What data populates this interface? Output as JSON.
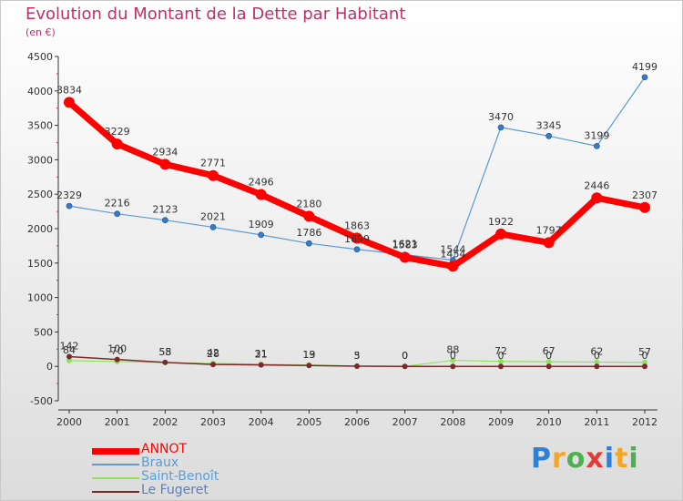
{
  "title": "Evolution du Montant de la Dette par Habitant",
  "subtitle": "(en €)",
  "brand": {
    "text": "Proxiti",
    "letters": [
      {
        "ch": "P",
        "color": "#2e7fd6"
      },
      {
        "ch": "r",
        "color": "#f5a623"
      },
      {
        "ch": "o",
        "color": "#4caf50"
      },
      {
        "ch": "x",
        "color": "#e53935"
      },
      {
        "ch": "i",
        "color": "#2e7fd6"
      },
      {
        "ch": "t",
        "color": "#f5a623"
      },
      {
        "ch": "i",
        "color": "#4caf50"
      }
    ]
  },
  "chart_data": {
    "type": "line",
    "title": "Evolution du Montant de la Dette par Habitant",
    "subtitle": "(en €)",
    "x": [
      2000,
      2001,
      2002,
      2003,
      2004,
      2005,
      2006,
      2007,
      2008,
      2009,
      2010,
      2011,
      2012
    ],
    "ylim": [
      -500,
      4500
    ],
    "yticks": [
      -500,
      0,
      500,
      1000,
      1500,
      2000,
      2500,
      3000,
      3500,
      4000,
      4500
    ],
    "grid": false,
    "legend_position": "bottom-left",
    "series": [
      {
        "name": "ANNOT",
        "color": "#ff0000",
        "values": [
          3834,
          3229,
          2934,
          2771,
          2496,
          2180,
          1863,
          1583,
          1454,
          1922,
          1797,
          2446,
          2307
        ]
      },
      {
        "name": "Braux",
        "color": "#5b9bd5",
        "values": [
          2329,
          2216,
          2123,
          2021,
          1909,
          1786,
          1699,
          1621,
          1544,
          3470,
          3345,
          3199,
          4199
        ]
      },
      {
        "name": "Saint-Benoît",
        "color": "#90e060",
        "values": [
          84,
          70,
          55,
          42,
          31,
          19,
          5,
          0,
          88,
          72,
          67,
          62,
          57
        ]
      },
      {
        "name": "Le Fugeret",
        "color": "#7a2a2a",
        "values": [
          142,
          100,
          58,
          28,
          21,
          13,
          3,
          0,
          0,
          0,
          0,
          0,
          0
        ]
      }
    ]
  }
}
